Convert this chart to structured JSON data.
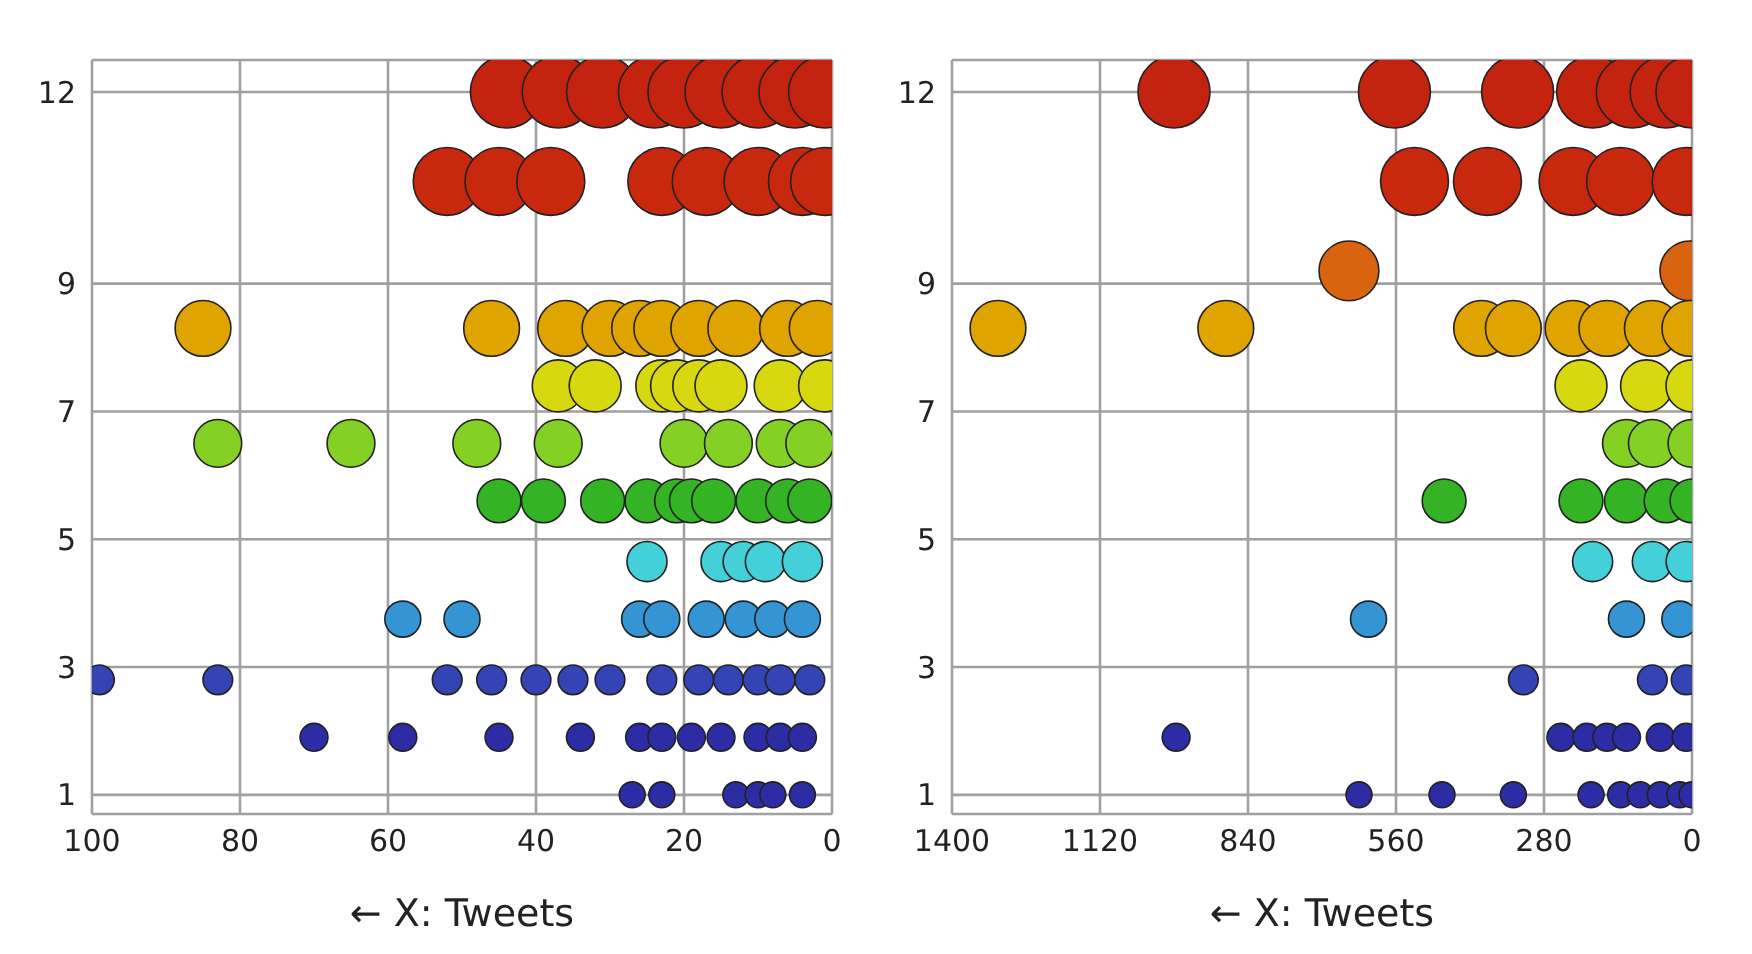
{
  "chart_data": [
    {
      "type": "bubble",
      "xlabel": "← X: Tweets",
      "xlim": [
        100,
        0
      ],
      "xticks": [
        100,
        80,
        60,
        40,
        20,
        0
      ],
      "ylim": [
        0.7,
        12.5
      ],
      "yticks": [
        1,
        3,
        5,
        7,
        9,
        12
      ],
      "grid": true,
      "series": [
        {
          "color": "#c42310",
          "x": [
            44,
            37,
            31,
            24,
            20,
            15,
            10,
            5,
            1
          ],
          "values": [
            12,
            12,
            12,
            12,
            12,
            12,
            12,
            12,
            12
          ],
          "sizes": [
            1,
            1,
            1,
            1,
            1,
            1,
            1,
            1,
            1
          ]
        },
        {
          "color": "#c8280e",
          "x": [
            52,
            45,
            38,
            23,
            17,
            10,
            4,
            1
          ],
          "values": [
            10.6,
            10.6,
            10.6,
            10.6,
            10.6,
            10.6,
            10.6,
            10.6
          ],
          "sizes": [
            0.89,
            0.89,
            0.89,
            0.89,
            0.89,
            0.89,
            0.89,
            0.89
          ]
        },
        {
          "color": "#e0a400",
          "x": [
            85,
            46,
            36,
            30,
            26,
            23,
            18,
            13,
            6,
            2
          ],
          "values": [
            8.3,
            8.3,
            8.3,
            8.3,
            8.3,
            8.3,
            8.3,
            8.3,
            8.3,
            8.3
          ],
          "sizes": [
            0.6,
            0.6,
            0.6,
            0.6,
            0.6,
            0.6,
            0.6,
            0.6,
            0.6,
            0.6
          ]
        },
        {
          "color": "#d8d810",
          "x": [
            37,
            32,
            23,
            21,
            18,
            15,
            7,
            1
          ],
          "values": [
            7.4,
            7.4,
            7.4,
            7.4,
            7.4,
            7.4,
            7.4,
            7.4
          ],
          "sizes": [
            0.52,
            0.52,
            0.52,
            0.52,
            0.52,
            0.52,
            0.52,
            0.52
          ]
        },
        {
          "color": "#84d024",
          "x": [
            83,
            65,
            48,
            37,
            20,
            14,
            7,
            3
          ],
          "values": [
            6.5,
            6.5,
            6.5,
            6.5,
            6.5,
            6.5,
            6.5,
            6.5
          ],
          "sizes": [
            0.44,
            0.44,
            0.44,
            0.44,
            0.44,
            0.44,
            0.44,
            0.44
          ]
        },
        {
          "color": "#34b424",
          "x": [
            45,
            39,
            31,
            25,
            21,
            19,
            16,
            10,
            6,
            3
          ],
          "values": [
            5.6,
            5.6,
            5.6,
            5.6,
            5.6,
            5.6,
            5.6,
            5.6,
            5.6,
            5.6
          ],
          "sizes": [
            0.37,
            0.37,
            0.37,
            0.37,
            0.37,
            0.37,
            0.37,
            0.37,
            0.37,
            0.37
          ]
        },
        {
          "color": "#44d0d8",
          "x": [
            25,
            15,
            12,
            9,
            4
          ],
          "values": [
            4.65,
            4.65,
            4.65,
            4.65,
            4.65
          ],
          "sizes": [
            0.31,
            0.31,
            0.31,
            0.31,
            0.31
          ]
        },
        {
          "color": "#3494d4",
          "x": [
            58,
            50,
            26,
            23,
            17,
            12,
            8,
            4
          ],
          "values": [
            3.75,
            3.75,
            3.75,
            3.75,
            3.75,
            3.75,
            3.75,
            3.75
          ],
          "sizes": [
            0.25,
            0.25,
            0.25,
            0.25,
            0.25,
            0.25,
            0.25,
            0.25
          ]
        },
        {
          "color": "#3444b4",
          "x": [
            99,
            83,
            52,
            46,
            40,
            35,
            30,
            23,
            18,
            14,
            10,
            7,
            3
          ],
          "values": [
            2.8,
            2.8,
            2.8,
            2.8,
            2.8,
            2.8,
            2.8,
            2.8,
            2.8,
            2.8,
            2.8,
            2.8,
            2.8
          ],
          "sizes": [
            0.17,
            0.17,
            0.17,
            0.17,
            0.17,
            0.17,
            0.17,
            0.17,
            0.17,
            0.17,
            0.17,
            0.17,
            0.17
          ]
        },
        {
          "color": "#2c2ca4",
          "x": [
            70,
            58,
            45,
            34,
            26,
            23,
            19,
            15,
            10,
            7,
            4
          ],
          "values": [
            1.9,
            1.9,
            1.9,
            1.9,
            1.9,
            1.9,
            1.9,
            1.9,
            1.9,
            1.9,
            1.9
          ],
          "sizes": [
            0.15,
            0.15,
            0.15,
            0.15,
            0.15,
            0.15,
            0.15,
            0.15,
            0.15,
            0.15,
            0.15
          ]
        },
        {
          "color": "#2c2ca4",
          "x": [
            27,
            23,
            13,
            10,
            8,
            4
          ],
          "values": [
            1,
            1,
            1,
            1,
            1,
            1
          ],
          "sizes": [
            0.13,
            0.13,
            0.13,
            0.13,
            0.13,
            0.13
          ]
        }
      ]
    },
    {
      "type": "bubble",
      "xlabel": "← X: Tweets",
      "xlim": [
        1400,
        0
      ],
      "xticks": [
        1400,
        1120,
        840,
        560,
        280,
        0
      ],
      "ylim": [
        0.7,
        12.5
      ],
      "yticks": [
        1,
        3,
        5,
        7,
        9,
        12
      ],
      "grid": true,
      "series": [
        {
          "color": "#c42310",
          "x": [
            980,
            563,
            330,
            188,
            113,
            49,
            0
          ],
          "values": [
            12,
            12,
            12,
            12,
            12,
            12,
            12
          ],
          "sizes": [
            1,
            1,
            1,
            1,
            1,
            1,
            1
          ]
        },
        {
          "color": "#c8280e",
          "x": [
            525,
            387,
            225,
            135,
            11
          ],
          "values": [
            10.6,
            10.6,
            10.6,
            10.6,
            10.6
          ],
          "sizes": [
            0.89,
            0.89,
            0.89,
            0.89,
            0.89
          ]
        },
        {
          "color": "#d86410",
          "x": [
            649,
            4
          ],
          "values": [
            9.2,
            9.2
          ],
          "sizes": [
            0.69,
            0.69
          ]
        },
        {
          "color": "#e0a400",
          "x": [
            1313,
            882,
            398,
            338,
            225,
            161,
            75,
            4
          ],
          "values": [
            8.3,
            8.3,
            8.3,
            8.3,
            8.3,
            8.3,
            8.3,
            8.3
          ],
          "sizes": [
            0.6,
            0.6,
            0.6,
            0.6,
            0.6,
            0.6,
            0.6,
            0.6
          ]
        },
        {
          "color": "#d8d810",
          "x": [
            210,
            86,
            0
          ],
          "values": [
            7.4,
            7.4,
            7.4
          ],
          "sizes": [
            0.52,
            0.52,
            0.52
          ]
        },
        {
          "color": "#84d024",
          "x": [
            124,
            75,
            0
          ],
          "values": [
            6.5,
            6.5,
            6.5
          ],
          "sizes": [
            0.44,
            0.44,
            0.44
          ]
        },
        {
          "color": "#34b424",
          "x": [
            469,
            210,
            124,
            49,
            0
          ],
          "values": [
            5.6,
            5.6,
            5.6,
            5.6,
            5.6
          ],
          "sizes": [
            0.37,
            0.37,
            0.37,
            0.37,
            0.37
          ]
        },
        {
          "color": "#44d0d8",
          "x": [
            188,
            75,
            11
          ],
          "values": [
            4.65,
            4.65,
            4.65
          ],
          "sizes": [
            0.31,
            0.31,
            0.31
          ]
        },
        {
          "color": "#3494d4",
          "x": [
            612,
            124,
            23
          ],
          "values": [
            3.75,
            3.75,
            3.75
          ],
          "sizes": [
            0.25,
            0.25,
            0.25
          ]
        },
        {
          "color": "#3444b4",
          "x": [
            319,
            75,
            11
          ],
          "values": [
            2.8,
            2.8,
            2.8
          ],
          "sizes": [
            0.17,
            0.17,
            0.17
          ]
        },
        {
          "color": "#2c2ca4",
          "x": [
            976,
            248,
            199,
            161,
            124,
            60,
            11
          ],
          "values": [
            1.9,
            1.9,
            1.9,
            1.9,
            1.9,
            1.9,
            1.9
          ],
          "sizes": [
            0.15,
            0.15,
            0.15,
            0.15,
            0.15,
            0.15,
            0.15
          ]
        },
        {
          "color": "#2c2ca4",
          "x": [
            630,
            473,
            338,
            191,
            135,
            98,
            60,
            23,
            0
          ],
          "values": [
            1,
            1,
            1,
            1,
            1,
            1,
            1,
            1,
            1
          ],
          "sizes": [
            0.13,
            0.13,
            0.13,
            0.13,
            0.13,
            0.13,
            0.13,
            0.13,
            0.13
          ]
        }
      ]
    }
  ]
}
